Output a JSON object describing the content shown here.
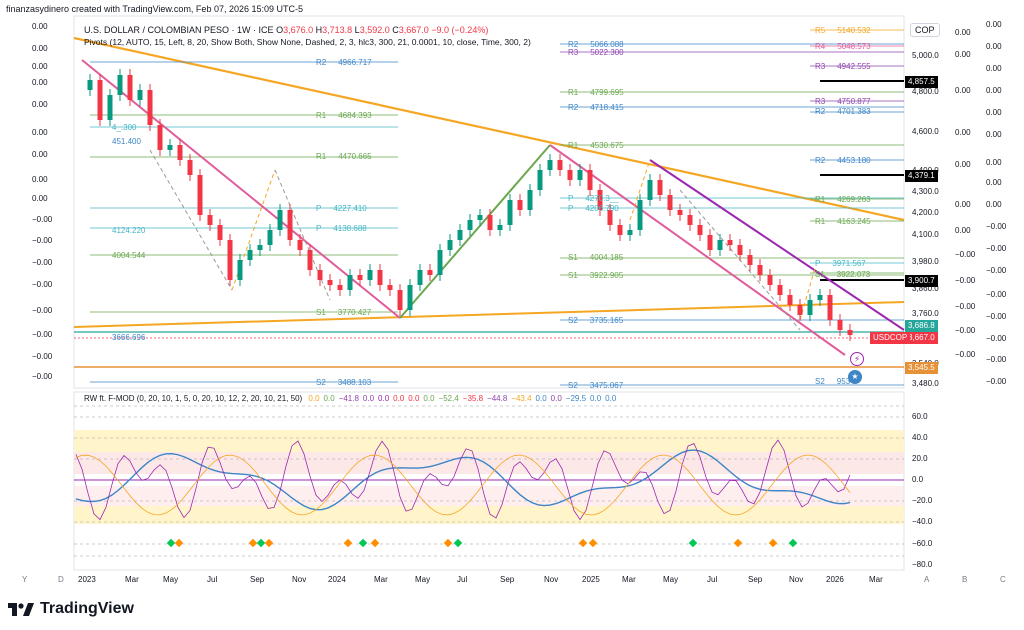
{
  "watermark_top": "finanzasydinero created with TradingView.com, Feb 07, 2026 15:09 UTC-5",
  "header": {
    "symbol": "U.S. DOLLAR / COLOMBIAN PESO · 1W · ICE",
    "o_label": "O",
    "o_val": "3,676.0",
    "h_label": "H",
    "h_val": "3,713.8",
    "l_label": "L",
    "l_val": "3,592.0",
    "c_label": "C",
    "c_val": "3,667.0",
    "change": "−9.0 (−0.24%)",
    "pivots_line": "Pivots (12, AUTO, 15, Left, 8, 20, Show Both, Show None, Dashed, 2, 3, hlc3, 300, 21, 0.0001, 10, close, Time, 300, 2)"
  },
  "currency_button": "COP",
  "left_scale": [
    "0.00",
    "0.00",
    "0.00",
    "0.00",
    "0.00",
    "0.00",
    "0.00",
    "0.00",
    "0.00",
    "−0.00",
    "−0.00",
    "−0.00",
    "−0.00",
    "−0.00",
    "−0.00",
    "−0.00",
    "−0.00"
  ],
  "far_right_scale": [
    "0.00",
    "0.00",
    "0.00",
    "0.00",
    "0.00",
    "0.00",
    "0.00",
    "0.00",
    "0.00",
    "−0.00",
    "−0.00",
    "−0.00",
    "−0.00",
    "−0.00",
    "−0.00",
    "−0.00",
    "−0.00"
  ],
  "mid_right_scale": [
    "0.00",
    "0.00",
    "0.00",
    "0.00",
    "0.00",
    "0.00",
    "0.00",
    "−0.00",
    "−0.00",
    "−0.00",
    "−0.00",
    "−0.00"
  ],
  "price_scale": [
    "5,000.0",
    "4,800.0",
    "4,600.0",
    "4,400.0",
    "4,300.0",
    "4,200.0",
    "4,100.0",
    "3,980.0",
    "3,860.0",
    "3,760.0",
    "3,480.0",
    "3,540.0"
  ],
  "price_tags": [
    {
      "text": "4,857.5",
      "color": "#000000"
    },
    {
      "text": "4,379.1",
      "color": "#000000"
    },
    {
      "text": "3,900.7",
      "color": "#000000"
    },
    {
      "text": "3,686.8",
      "color": "#26a69a"
    },
    {
      "text": "3,667.0",
      "color": "#f23645"
    },
    {
      "text": "3,545.5",
      "color": "#e69138"
    }
  ],
  "usdcop_tag": "USDCOP",
  "pivot_labels": [
    {
      "text": "R5",
      "val": "5140.532",
      "color": "#f5a623"
    },
    {
      "text": "R4",
      "val": "5048.573",
      "color": "#e05c9a"
    },
    {
      "text": "R3",
      "val": "4942.555",
      "color": "#8e44ad"
    },
    {
      "text": "R3",
      "val": "4750.877",
      "color": "#8e44ad"
    },
    {
      "text": "R2",
      "val": "4701.383",
      "color": "#3d85c6"
    },
    {
      "text": "R2",
      "val": "4453.180",
      "color": "#3d85c6"
    },
    {
      "text": "R1",
      "val": "4269.263",
      "color": "#6aa84f"
    },
    {
      "text": "R1",
      "val": "4163.245",
      "color": "#6aa84f"
    },
    {
      "text": "P",
      "val": "3971.567",
      "color": "#45b6c4"
    },
    {
      "text": "S1",
      "val": "3922.073",
      "color": "#6aa84f"
    },
    {
      "text": "R2",
      "val": "5066.088",
      "color": "#3d85c6"
    },
    {
      "text": "R3",
      "val": "5022.300",
      "color": "#8e44ad"
    },
    {
      "text": "R1",
      "val": "4799.695",
      "color": "#6aa84f"
    },
    {
      "text": "R2",
      "val": "4718.415",
      "color": "#3d85c6"
    },
    {
      "text": "R1",
      "val": "4530.675",
      "color": "#6aa84f"
    },
    {
      "text": "P",
      "val": "4270.3__",
      "color": "#45b6c4"
    },
    {
      "text": "P",
      "val": "4206.790",
      "color": "#45b6c4"
    },
    {
      "text": "S1",
      "val": "4004.185",
      "color": "#6aa84f"
    },
    {
      "text": "S1",
      "val": "3922.905",
      "color": "#6aa84f"
    },
    {
      "text": "S2",
      "val": "3735.165",
      "color": "#3d85c6"
    },
    {
      "text": "S2",
      "val": "3475.067",
      "color": "#3d85c6"
    },
    {
      "text": "R2",
      "val": "4966.717",
      "color": "#3d85c6"
    },
    {
      "text": "R1",
      "val": "4684.393",
      "color": "#6aa84f"
    },
    {
      "text": "R1",
      "val": "4470.665",
      "color": "#6aa84f"
    },
    {
      "text": "P",
      "val": "4227.410",
      "color": "#45b6c4"
    },
    {
      "text": "P",
      "val": "4138.688",
      "color": "#45b6c4"
    },
    {
      "text": "S1",
      "val": "3770.427",
      "color": "#6aa84f"
    },
    {
      "text": "S2",
      "val": "3488.103",
      "color": "#3d85c6"
    },
    {
      "text": "",
      "val": "4124.220",
      "color": "#45b6c4"
    },
    {
      "text": "",
      "val": "4004.544",
      "color": "#6aa84f"
    },
    {
      "text": "",
      "val": "3666.696",
      "color": "#3d85c6"
    },
    {
      "text": "",
      "val": "4_.300",
      "color": "#45b6c4"
    },
    {
      "text": "",
      "val": "451.400",
      "color": "#3d85c6"
    },
    {
      "text": "S2",
      "val": "953",
      "color": "#3d85c6"
    }
  ],
  "oscillator": {
    "label": "RW ft. F-MOD (0, 20, 10, 1, 5, 0, 20, 10, 12, 2, 20, 10, 21, 50)",
    "values": [
      {
        "v": "0.0",
        "c": "#f5a623"
      },
      {
        "v": "0.0",
        "c": "#6aa84f"
      },
      {
        "v": "−41.8",
        "c": "#8e44ad"
      },
      {
        "v": "0.0",
        "c": "#8e44ad"
      },
      {
        "v": "0.0",
        "c": "#9c27b0"
      },
      {
        "v": "0.0",
        "c": "#f23645"
      },
      {
        "v": "0.0",
        "c": "#f23645"
      },
      {
        "v": "0.0",
        "c": "#6aa84f"
      },
      {
        "v": "−52.4",
        "c": "#6aa84f"
      },
      {
        "v": "−35.8",
        "c": "#f23645"
      },
      {
        "v": "−44.8",
        "c": "#8e44ad"
      },
      {
        "v": "−43.4",
        "c": "#f5a623"
      },
      {
        "v": "0.0",
        "c": "#3d85c6"
      },
      {
        "v": "0.0",
        "c": "#8e44ad"
      },
      {
        "v": "−29.5",
        "c": "#3d85c6"
      },
      {
        "v": "0.0",
        "c": "#3d85c6"
      },
      {
        "v": "0.0",
        "c": "#3d85c6"
      }
    ],
    "scale": [
      "60.0",
      "40.0",
      "20.0",
      "0.0",
      "−20.0",
      "−40.0",
      "−60.0",
      "−80.0"
    ]
  },
  "x_axis": [
    "2023",
    "Mar",
    "May",
    "Jul",
    "Sep",
    "Nov",
    "2024",
    "Mar",
    "May",
    "Jul",
    "Sep",
    "Nov",
    "2025",
    "Mar",
    "May",
    "Jul",
    "Sep",
    "Nov",
    "2026",
    "Mar"
  ],
  "x_axis_letters": [
    "Y",
    "D",
    "A",
    "B",
    "C"
  ],
  "brand": "TradingView",
  "colors": {
    "up": "#089981",
    "down": "#f23645",
    "trend_orange": "#f5a623",
    "channel_pink": "#e05c9a",
    "channel_purple": "#9c27b0",
    "green_trend": "#6aa84f"
  }
}
